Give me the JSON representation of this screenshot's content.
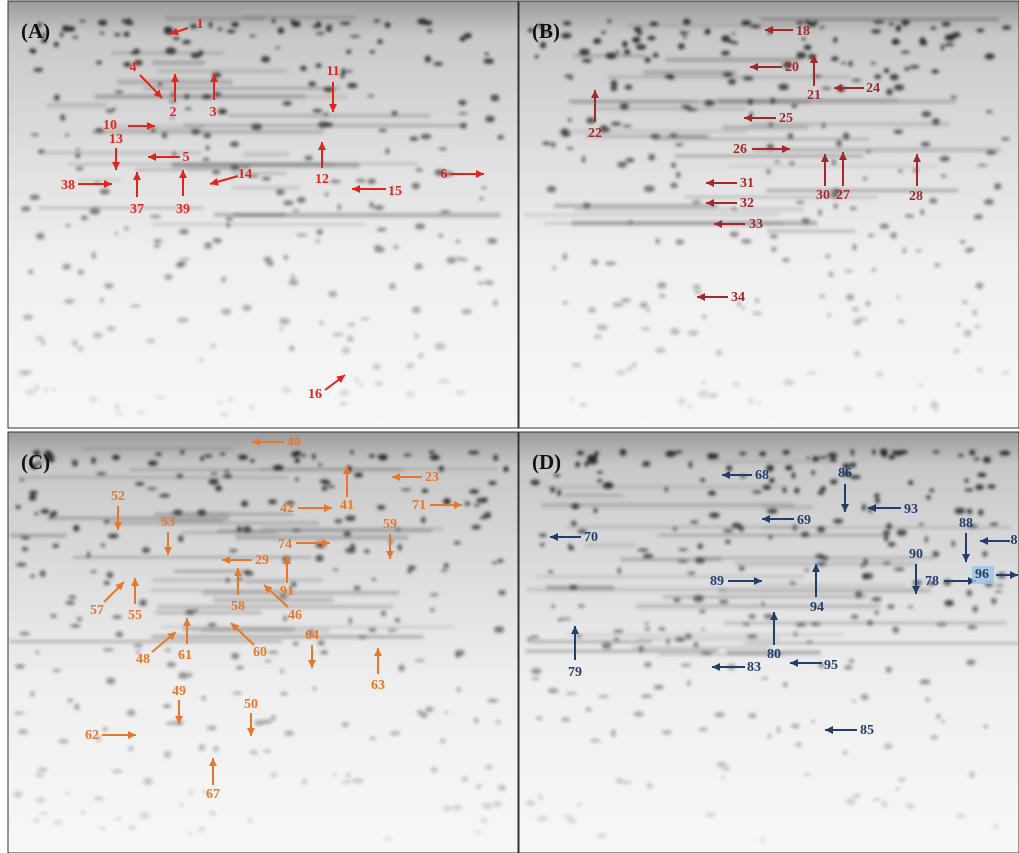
{
  "panels": [
    {
      "label": "(A)",
      "color": "#e3241d",
      "spots": [
        "1",
        "4",
        "2",
        "3",
        "11",
        "10",
        "13",
        "5",
        "12",
        "38",
        "14",
        "37",
        "39",
        "15",
        "6",
        "16"
      ]
    },
    {
      "label": "(B)",
      "color": "#a3282a",
      "spots": [
        "18",
        "20",
        "21",
        "24",
        "22",
        "25",
        "26",
        "30",
        "27",
        "28",
        "31",
        "32",
        "33",
        "34"
      ]
    },
    {
      "label": "(C)",
      "color": "#e5782a",
      "spots": [
        "40",
        "23",
        "41",
        "42",
        "71",
        "52",
        "53",
        "59",
        "74",
        "29",
        "58",
        "91",
        "46",
        "57",
        "55",
        "48",
        "61",
        "60",
        "64",
        "63",
        "49",
        "50",
        "62",
        "67"
      ]
    },
    {
      "label": "(D)",
      "color": "#213f6b",
      "spots": [
        "68",
        "86",
        "93",
        "69",
        "70",
        "88",
        "8",
        "90",
        "89",
        "78",
        "96",
        "94",
        "79",
        "80",
        "95",
        "83",
        "85"
      ]
    }
  ]
}
